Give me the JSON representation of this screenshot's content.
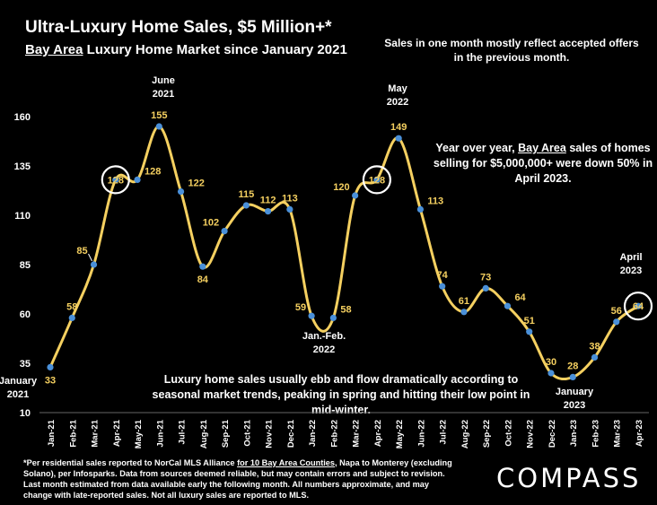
{
  "header": {
    "title": "Ultra-Luxury Home Sales, $5 Million+*",
    "subtitle_underlined": "Bay Area",
    "subtitle_rest": " Luxury Home Market since January 2021"
  },
  "notes": {
    "top": "Sales in one month mostly reflect accepted offers in the previous month.",
    "yoy_pre": "Year over year, ",
    "yoy_underlined": "Bay Area",
    "yoy_post": " sales of homes selling for $5,000,000+ were down 50% in April 2023.",
    "season": "Luxury home sales usually ebb and flow dramatically according to seasonal market trends, peaking in spring and hitting their low point in mid-winter."
  },
  "footnote": {
    "pre": "*Per residential sales reported to NorCal MLS Alliance ",
    "underlined": "for 10 Bay Area Counties",
    "post": ", Napa to Monterey (excluding Solano), per Infosparks. Data from sources deemed reliable, but may contain errors and subject to revision. Last month estimated from data available early the following month. All numbers approximate, and may change with late-reported sales. Not all luxury sales are reported to MLS."
  },
  "logo": "COMPASS",
  "colors": {
    "line": "#f5d060",
    "marker": "#4a90d9",
    "label": "#f5d060",
    "background": "#000000"
  },
  "chart_data": {
    "type": "line",
    "categories": [
      "Jan-21",
      "Feb-21",
      "Mar-21",
      "Apr-21",
      "May-21",
      "Jun-21",
      "Jul-21",
      "Aug-21",
      "Sep-21",
      "Oct-21",
      "Nov-21",
      "Dec-21",
      "Jan-22",
      "Feb-22",
      "Mar-22",
      "Apr-22",
      "May-22",
      "Jun-22",
      "Jul-22",
      "Aug-22",
      "Sep-22",
      "Oct-22",
      "Nov-22",
      "Dec-22",
      "Jan-23",
      "Feb-23",
      "Mar-23",
      "Apr-23"
    ],
    "series": [
      {
        "values": [
          33,
          58,
          85,
          128,
          128,
          155,
          122,
          84,
          102,
          115,
          112,
          113,
          59,
          58,
          120,
          128,
          149,
          113,
          74,
          61,
          73,
          64,
          51,
          30,
          28,
          38,
          56,
          64
        ]
      }
    ],
    "ylim": [
      10,
      160
    ],
    "yticks": [
      10,
      35,
      60,
      85,
      110,
      135,
      160
    ],
    "grid": false,
    "circled_points": [
      "Apr-21",
      "Apr-22",
      "Apr-23"
    ],
    "annotations": [
      {
        "lines": [
          "January",
          "2021"
        ],
        "at": "Jan-21"
      },
      {
        "lines": [
          "June",
          "2021"
        ],
        "at": "Jun-21"
      },
      {
        "lines": [
          "Jan.-Feb.",
          "2022"
        ],
        "at": "Feb-22"
      },
      {
        "lines": [
          "May",
          "2022"
        ],
        "at": "May-22"
      },
      {
        "lines": [
          "January",
          "2023"
        ],
        "at": "Jan-23"
      },
      {
        "lines": [
          "April",
          "2023"
        ],
        "at": "Apr-23"
      }
    ]
  }
}
